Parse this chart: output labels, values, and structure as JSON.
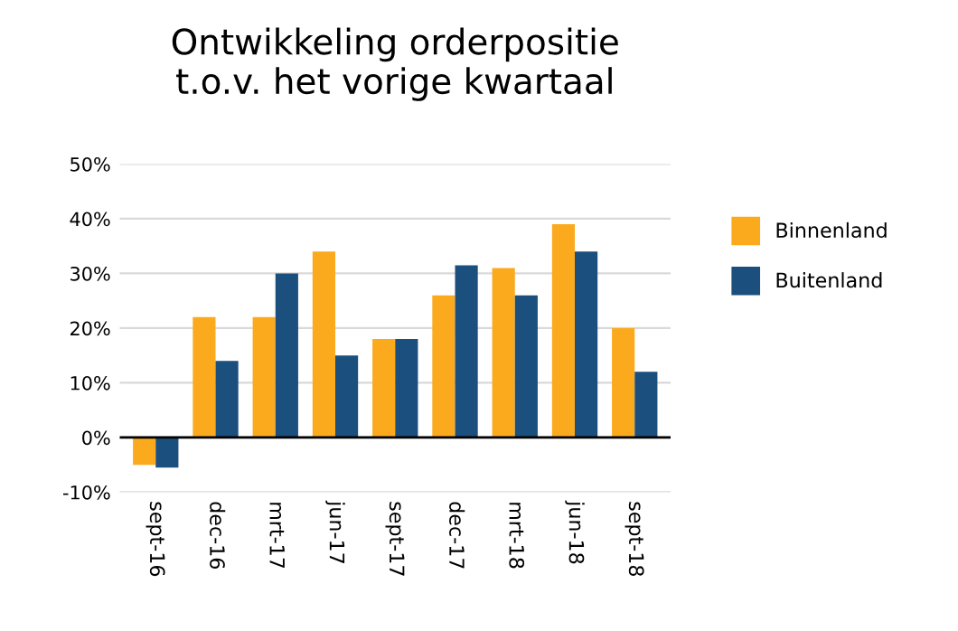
{
  "chart_data": {
    "type": "bar",
    "title": "Ontwikkeling orderpositie\nt.o.v. het vorige kwartaal",
    "categories": [
      "sept-16",
      "dec-16",
      "mrt-17",
      "jun-17",
      "sept-17",
      "dec-17",
      "mrt-18",
      "jun-18",
      "sept-18"
    ],
    "series": [
      {
        "name": "Binnenland",
        "color": "#fbaa1e",
        "values": [
          -5,
          22,
          22,
          34,
          18,
          26,
          31,
          39,
          20
        ]
      },
      {
        "name": "Buitenland",
        "color": "#1b4f7d",
        "values": [
          -5.5,
          14,
          30,
          15,
          18,
          31.5,
          26,
          34,
          12
        ]
      }
    ],
    "ylim": [
      -10,
      50
    ],
    "yticks": [
      {
        "value": -10,
        "label": "-10%"
      },
      {
        "value": 0,
        "label": "0%"
      },
      {
        "value": 10,
        "label": "10%"
      },
      {
        "value": 20,
        "label": "20%"
      },
      {
        "value": 30,
        "label": "30%"
      },
      {
        "value": 40,
        "label": "40%"
      },
      {
        "value": 50,
        "label": "50%"
      }
    ],
    "grid": "y",
    "legend": "right"
  }
}
